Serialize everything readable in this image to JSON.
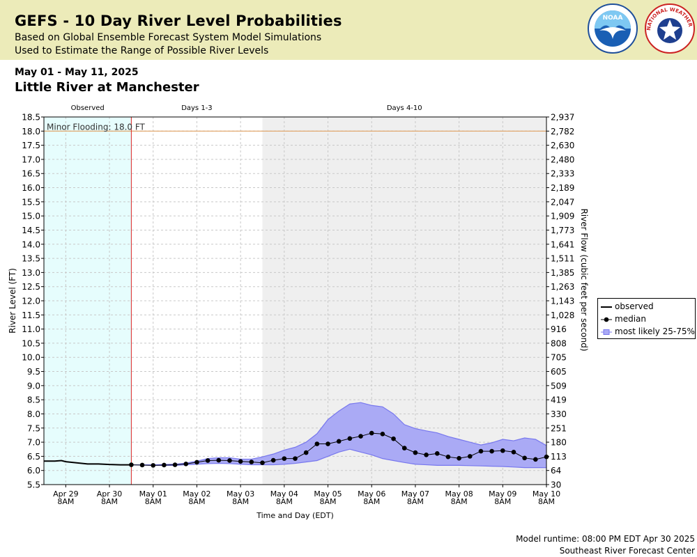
{
  "header": {
    "title": "GEFS - 10 Day River Level Probabilities",
    "subtitle1": "Based on Global Ensemble Forecast System Model Simulations",
    "subtitle2": "Used to Estimate the Range of Possible River Levels",
    "noaa_logo_text": "NOAA",
    "nws_logo_text": "NATIONAL WEATHER SERVICE"
  },
  "date_range": "May 01 - May 11, 2025",
  "station": "Little River at Manchester",
  "footer": {
    "runtime": "Model runtime: 08:00 PM EDT Apr 30 2025",
    "center": "Southeast River Forecast Center"
  },
  "legend": {
    "observed": "observed",
    "median": "median",
    "range": "most likely 25-75%"
  },
  "colors": {
    "header_bg": "#ecebb9",
    "observed_bg": "#e6fdfd",
    "days410_bg": "#efefef",
    "band_fill": "#aaaaf5",
    "band_line": "#7777ee",
    "flood_line": "#e0a060",
    "forecast_start_line": "#dd2222"
  },
  "chart_data": {
    "type": "line",
    "xlabel": "Time and Day (EDT)",
    "ylabel": "River Level (FT)",
    "ylabel_right": "River Flow (cubic feet per second)",
    "ylim": [
      5.5,
      18.5
    ],
    "xlim": [
      -0.5,
      11.0
    ],
    "yticks": [
      5.5,
      6.0,
      6.5,
      7.0,
      7.5,
      8.0,
      8.5,
      9.0,
      9.5,
      10.0,
      10.5,
      11.0,
      11.5,
      12.0,
      12.5,
      13.0,
      13.5,
      14.0,
      14.5,
      15.0,
      15.5,
      16.0,
      16.5,
      17.0,
      17.5,
      18.0,
      18.5
    ],
    "ytick_labels": [
      "5.5",
      "6.0",
      "6.5",
      "7.0",
      "7.5",
      "8.0",
      "8.5",
      "9.0",
      "9.5",
      "10.0",
      "10.5",
      "11.0",
      "11.5",
      "12.0",
      "12.5",
      "13.0",
      "13.5",
      "14.0",
      "14.5",
      "15.0",
      "15.5",
      "16.0",
      "16.5",
      "17.0",
      "17.5",
      "18.0",
      "18.5"
    ],
    "right_tick_labels": [
      "30",
      "64",
      "113",
      "180",
      "251",
      "330",
      "419",
      "509",
      "605",
      "705",
      "808",
      "916",
      "1,028",
      "1,143",
      "1,263",
      "1,385",
      "1,511",
      "1,641",
      "1,773",
      "1,909",
      "2,047",
      "2,189",
      "2,333",
      "2,480",
      "2,630",
      "2,782",
      "2,937"
    ],
    "xticks": [
      0,
      1,
      2,
      3,
      4,
      5,
      6,
      7,
      8,
      9,
      10,
      11
    ],
    "xtick_labels": [
      [
        "Apr 29",
        "8AM"
      ],
      [
        "Apr 30",
        "8AM"
      ],
      [
        "May 01",
        "8AM"
      ],
      [
        "May 02",
        "8AM"
      ],
      [
        "May 03",
        "8AM"
      ],
      [
        "May 04",
        "8AM"
      ],
      [
        "May 05",
        "8AM"
      ],
      [
        "May 06",
        "8AM"
      ],
      [
        "May 07",
        "8AM"
      ],
      [
        "May 08",
        "8AM"
      ],
      [
        "May 09",
        "8AM"
      ],
      [
        "May 10",
        "8AM"
      ]
    ],
    "regions": [
      {
        "label": "Observed",
        "start": -0.5,
        "end": 1.5
      },
      {
        "label": "Days 1-3",
        "start": 1.5,
        "end": 4.5
      },
      {
        "label": "Days 4-10",
        "start": 4.5,
        "end": 11.0
      }
    ],
    "flood_stage": {
      "label": "Minor Flooding: 18.0 FT",
      "value": 18.0
    },
    "forecast_start": 1.5,
    "observed": {
      "name": "observed",
      "x": [
        -0.5,
        -0.25,
        -0.1,
        0.0,
        0.25,
        0.5,
        0.75,
        1.0,
        1.25,
        1.5
      ],
      "y": [
        6.33,
        6.33,
        6.35,
        6.31,
        6.27,
        6.23,
        6.23,
        6.21,
        6.2,
        6.2
      ]
    },
    "median": {
      "name": "median",
      "x": [
        1.5,
        1.75,
        2.0,
        2.25,
        2.5,
        2.75,
        3.0,
        3.25,
        3.5,
        3.75,
        4.0,
        4.25,
        4.5,
        4.75,
        5.0,
        5.25,
        5.5,
        5.75,
        6.0,
        6.25,
        6.5,
        6.75,
        7.0,
        7.25,
        7.5,
        7.75,
        8.0,
        8.25,
        8.5,
        8.75,
        9.0,
        9.25,
        9.5,
        9.75,
        10.0,
        10.25,
        10.5,
        10.75,
        11.0
      ],
      "y": [
        6.2,
        6.19,
        6.18,
        6.19,
        6.2,
        6.23,
        6.29,
        6.35,
        6.36,
        6.35,
        6.32,
        6.3,
        6.27,
        6.36,
        6.42,
        6.42,
        6.63,
        6.94,
        6.94,
        7.03,
        7.13,
        7.21,
        7.32,
        7.29,
        7.12,
        6.79,
        6.63,
        6.55,
        6.6,
        6.48,
        6.43,
        6.5,
        6.68,
        6.68,
        6.7,
        6.65,
        6.44,
        6.39,
        6.48
      ]
    },
    "band": {
      "name": "most likely 25-75%",
      "x": [
        1.5,
        2.0,
        2.5,
        2.75,
        3.0,
        3.25,
        3.5,
        3.75,
        4.0,
        4.25,
        4.5,
        4.75,
        5.0,
        5.25,
        5.5,
        5.75,
        6.0,
        6.25,
        6.5,
        6.75,
        7.0,
        7.25,
        7.5,
        7.75,
        8.0,
        8.25,
        8.5,
        8.75,
        9.0,
        9.25,
        9.5,
        9.75,
        10.0,
        10.25,
        10.5,
        10.75,
        11.0
      ],
      "upper": [
        6.2,
        6.2,
        6.22,
        6.26,
        6.33,
        6.42,
        6.45,
        6.45,
        6.4,
        6.4,
        6.48,
        6.58,
        6.72,
        6.82,
        7.0,
        7.3,
        7.8,
        8.1,
        8.35,
        8.4,
        8.3,
        8.25,
        8.0,
        7.62,
        7.48,
        7.4,
        7.33,
        7.2,
        7.1,
        7.0,
        6.9,
        6.98,
        7.1,
        7.05,
        7.15,
        7.1,
        6.88
      ],
      "lower": [
        6.2,
        6.18,
        6.18,
        6.2,
        6.22,
        6.24,
        6.25,
        6.24,
        6.22,
        6.2,
        6.2,
        6.2,
        6.22,
        6.25,
        6.3,
        6.35,
        6.5,
        6.65,
        6.75,
        6.65,
        6.55,
        6.42,
        6.35,
        6.28,
        6.22,
        6.2,
        6.18,
        6.18,
        6.18,
        6.17,
        6.16,
        6.15,
        6.14,
        6.12,
        6.1,
        6.1,
        6.1
      ]
    }
  }
}
